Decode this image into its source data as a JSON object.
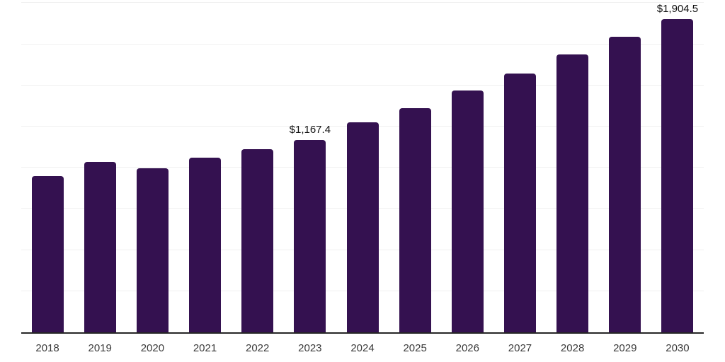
{
  "chart_data": {
    "type": "bar",
    "title": "",
    "categories": [
      "2018",
      "2019",
      "2020",
      "2021",
      "2022",
      "2023",
      "2024",
      "2025",
      "2026",
      "2027",
      "2028",
      "2029",
      "2030"
    ],
    "values": [
      949,
      1035,
      996,
      1061,
      1112,
      1167.4,
      1276,
      1361,
      1470,
      1572,
      1688,
      1795,
      1904.5
    ],
    "value_labels": [
      "",
      "",
      "",
      "",
      "",
      "$1,167.4",
      "",
      "",
      "",
      "",
      "",
      "",
      "$1,904.5"
    ],
    "xlabel": "",
    "ylabel": "",
    "ylim": [
      0,
      2010
    ],
    "gridline_interval": 250,
    "grid": "horizontal-only",
    "legend_position": "none",
    "y_axis_tick_labels": "hidden",
    "colors": {
      "bar": "#341150",
      "axis_line": "#262626",
      "gridline": "#f0f0f0",
      "value_label": "#111111",
      "tick_label": "#3a3a3a",
      "background": "#ffffff"
    }
  }
}
